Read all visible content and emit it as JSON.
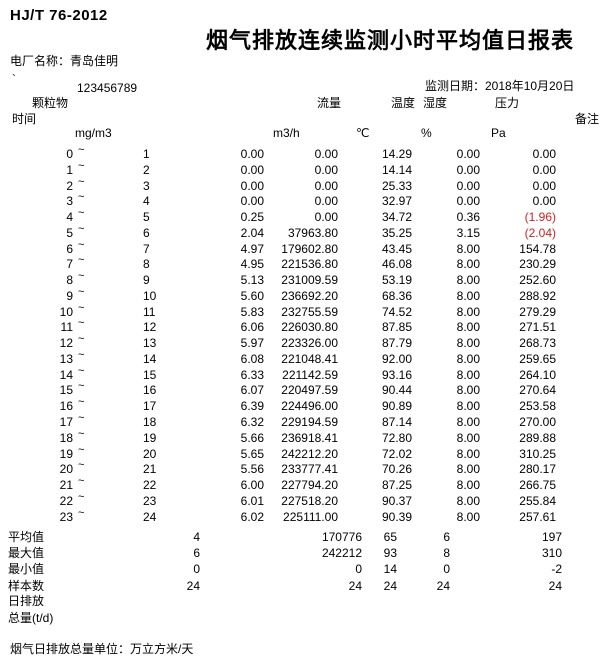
{
  "header": {
    "standard": "HJ/T 76-2012",
    "title": "烟气排放连续监测小时平均值日报表",
    "plant_label": "电厂名称：青岛佳明",
    "serial_mark": "`",
    "serial": "123456789",
    "date_label": "监测日期：2018年10月20日"
  },
  "columns": {
    "time": "时间",
    "pm": "颗粒物",
    "flow": "流量",
    "temp": "温度",
    "humidity": "湿度",
    "pressure": "压力",
    "remark": "备注",
    "units": {
      "pm": "mg/m3",
      "flow": "m3/h",
      "temp": "℃",
      "humidity": "%",
      "pressure": "Pa"
    }
  },
  "table": {
    "tilde_glyph": "~",
    "rows": [
      {
        "h1": "0",
        "h2": "1",
        "pm": "0.00",
        "flow": "0.00",
        "temp": "14.29",
        "hum": "0.00",
        "pres": "0.00",
        "red": false
      },
      {
        "h1": "1",
        "h2": "2",
        "pm": "0.00",
        "flow": "0.00",
        "temp": "14.14",
        "hum": "0.00",
        "pres": "0.00",
        "red": false
      },
      {
        "h1": "2",
        "h2": "3",
        "pm": "0.00",
        "flow": "0.00",
        "temp": "25.33",
        "hum": "0.00",
        "pres": "0.00",
        "red": false
      },
      {
        "h1": "3",
        "h2": "4",
        "pm": "0.00",
        "flow": "0.00",
        "temp": "32.97",
        "hum": "0.00",
        "pres": "0.00",
        "red": false
      },
      {
        "h1": "4",
        "h2": "5",
        "pm": "0.25",
        "flow": "0.00",
        "temp": "34.72",
        "hum": "0.36",
        "pres": "(1.96)",
        "red": true
      },
      {
        "h1": "5",
        "h2": "6",
        "pm": "2.04",
        "flow": "37963.80",
        "temp": "35.25",
        "hum": "3.15",
        "pres": "(2.04)",
        "red": true
      },
      {
        "h1": "6",
        "h2": "7",
        "pm": "4.97",
        "flow": "179602.80",
        "temp": "43.45",
        "hum": "8.00",
        "pres": "154.78",
        "red": false
      },
      {
        "h1": "7",
        "h2": "8",
        "pm": "4.95",
        "flow": "221536.80",
        "temp": "46.08",
        "hum": "8.00",
        "pres": "230.29",
        "red": false
      },
      {
        "h1": "8",
        "h2": "9",
        "pm": "5.13",
        "flow": "231009.59",
        "temp": "53.19",
        "hum": "8.00",
        "pres": "252.60",
        "red": false
      },
      {
        "h1": "9",
        "h2": "10",
        "pm": "5.60",
        "flow": "236692.20",
        "temp": "68.36",
        "hum": "8.00",
        "pres": "288.92",
        "red": false
      },
      {
        "h1": "10",
        "h2": "11",
        "pm": "5.83",
        "flow": "232755.59",
        "temp": "74.52",
        "hum": "8.00",
        "pres": "279.29",
        "red": false
      },
      {
        "h1": "11",
        "h2": "12",
        "pm": "6.06",
        "flow": "226030.80",
        "temp": "87.85",
        "hum": "8.00",
        "pres": "271.51",
        "red": false
      },
      {
        "h1": "12",
        "h2": "13",
        "pm": "5.97",
        "flow": "223326.00",
        "temp": "87.79",
        "hum": "8.00",
        "pres": "268.73",
        "red": false
      },
      {
        "h1": "13",
        "h2": "14",
        "pm": "6.08",
        "flow": "221048.41",
        "temp": "92.00",
        "hum": "8.00",
        "pres": "259.65",
        "red": false
      },
      {
        "h1": "14",
        "h2": "15",
        "pm": "6.33",
        "flow": "221142.59",
        "temp": "93.16",
        "hum": "8.00",
        "pres": "264.10",
        "red": false
      },
      {
        "h1": "15",
        "h2": "16",
        "pm": "6.07",
        "flow": "220497.59",
        "temp": "90.44",
        "hum": "8.00",
        "pres": "270.64",
        "red": false
      },
      {
        "h1": "16",
        "h2": "17",
        "pm": "6.39",
        "flow": "224496.00",
        "temp": "90.89",
        "hum": "8.00",
        "pres": "253.58",
        "red": false
      },
      {
        "h1": "17",
        "h2": "18",
        "pm": "6.32",
        "flow": "229194.59",
        "temp": "87.14",
        "hum": "8.00",
        "pres": "270.00",
        "red": false
      },
      {
        "h1": "18",
        "h2": "19",
        "pm": "5.66",
        "flow": "236918.41",
        "temp": "72.80",
        "hum": "8.00",
        "pres": "289.88",
        "red": false
      },
      {
        "h1": "19",
        "h2": "20",
        "pm": "5.65",
        "flow": "242212.20",
        "temp": "72.02",
        "hum": "8.00",
        "pres": "310.25",
        "red": false
      },
      {
        "h1": "20",
        "h2": "21",
        "pm": "5.56",
        "flow": "233777.41",
        "temp": "70.26",
        "hum": "8.00",
        "pres": "280.17",
        "red": false
      },
      {
        "h1": "21",
        "h2": "22",
        "pm": "6.00",
        "flow": "227794.20",
        "temp": "87.25",
        "hum": "8.00",
        "pres": "266.75",
        "red": false
      },
      {
        "h1": "22",
        "h2": "23",
        "pm": "6.01",
        "flow": "227518.20",
        "temp": "90.37",
        "hum": "8.00",
        "pres": "255.84",
        "red": false
      },
      {
        "h1": "23",
        "h2": "24",
        "pm": "6.02",
        "flow": "225111.00",
        "temp": "90.39",
        "hum": "8.00",
        "pres": "257.61",
        "red": false
      }
    ]
  },
  "summary": {
    "rows": [
      {
        "label": "平均值",
        "v1": "4",
        "v2": "170776",
        "v3": "65",
        "v4": "6",
        "v5": "197"
      },
      {
        "label": "最大值",
        "v1": "6",
        "v2": "242212",
        "v3": "93",
        "v4": "8",
        "v5": "310"
      },
      {
        "label": "最小值",
        "v1": "0",
        "v2": "0",
        "v3": "14",
        "v4": "0",
        "v5": "-2"
      },
      {
        "label": "样本数",
        "v1": "24",
        "v2": "24",
        "v3": "24",
        "v4": "24",
        "v5": "24"
      }
    ],
    "extra_labels": [
      "日排放",
      "总量(t/d)"
    ]
  },
  "footer": {
    "note": "烟气日排放总量单位：万立方米/天"
  },
  "colors": {
    "alert": "#cc2222"
  }
}
